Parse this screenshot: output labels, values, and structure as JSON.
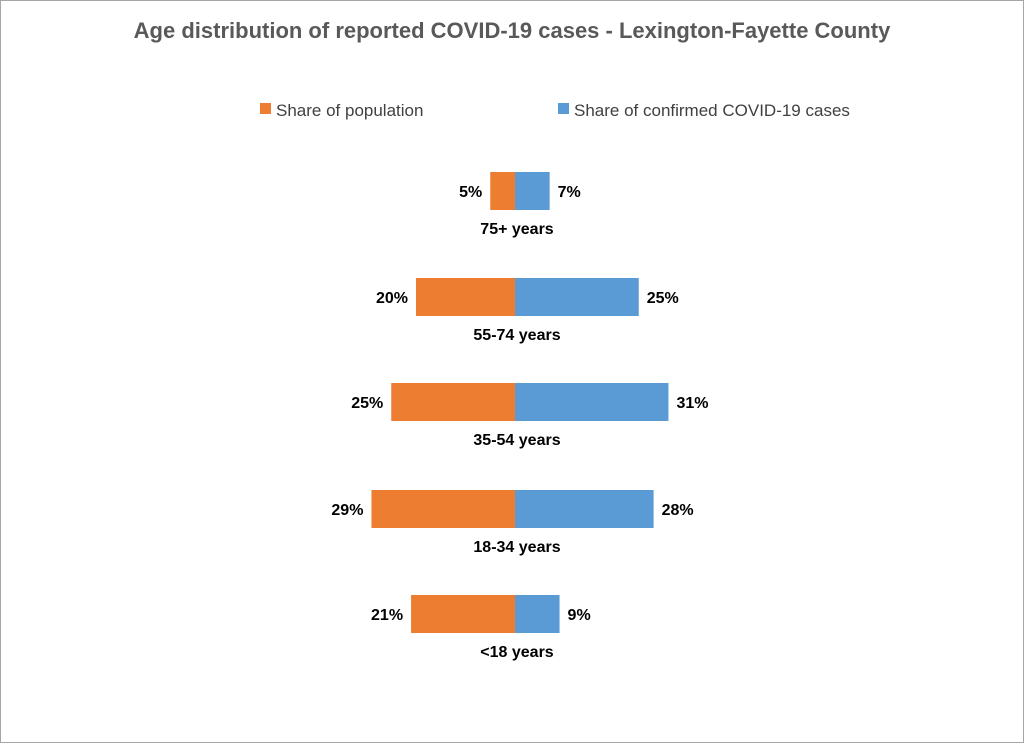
{
  "chart_data": {
    "type": "bar",
    "orientation": "horizontal-diverging",
    "title": "Age distribution of reported COVID-19 cases -  Lexington-Fayette County",
    "categories": [
      "75+ years",
      "55-74 years",
      "35-54 years",
      "18-34 years",
      "<18 years"
    ],
    "series": [
      {
        "name": "Share of population",
        "color": "#ED7D31",
        "direction": "left",
        "values": [
          5,
          20,
          25,
          29,
          21
        ],
        "labels": [
          "5%",
          "20%",
          "25%",
          "29%",
          "21%"
        ]
      },
      {
        "name": "Share of confirmed COVID-19 cases",
        "color": "#5B9BD5",
        "direction": "right",
        "values": [
          7,
          25,
          31,
          28,
          9
        ],
        "labels": [
          "7%",
          "25%",
          "31%",
          "28%",
          "9%"
        ]
      }
    ],
    "unit": "%",
    "legend_position": "top",
    "grid": false
  }
}
